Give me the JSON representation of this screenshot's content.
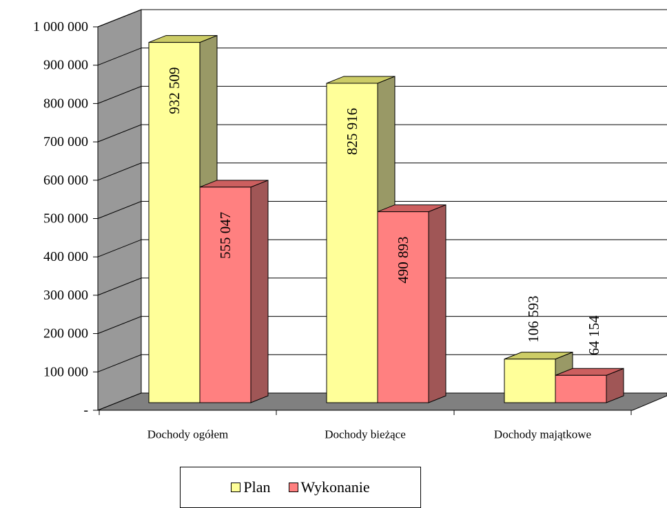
{
  "chart_data": {
    "type": "bar",
    "categories": [
      "Dochody ogółem",
      "Dochody bieżące",
      "Dochody majątkowe"
    ],
    "series": [
      {
        "name": "Plan",
        "values": [
          932509,
          825916,
          106593
        ],
        "labels": [
          "932 509",
          "825 916",
          "106 593"
        ],
        "color": "#ffff99"
      },
      {
        "name": "Wykonanie",
        "values": [
          555047,
          490893,
          64154
        ],
        "labels": [
          "555 047",
          "490 893",
          "64 154"
        ],
        "color": "#ff8080"
      }
    ],
    "yticks": [
      "-",
      "100 000",
      "200 000",
      "300 000",
      "400 000",
      "500 000",
      "600 000",
      "700 000",
      "800 000",
      "900 000",
      "1 000 000"
    ],
    "ylim": [
      0,
      1000000
    ],
    "three_d": true,
    "grid": true,
    "legend_position": "bottom"
  }
}
